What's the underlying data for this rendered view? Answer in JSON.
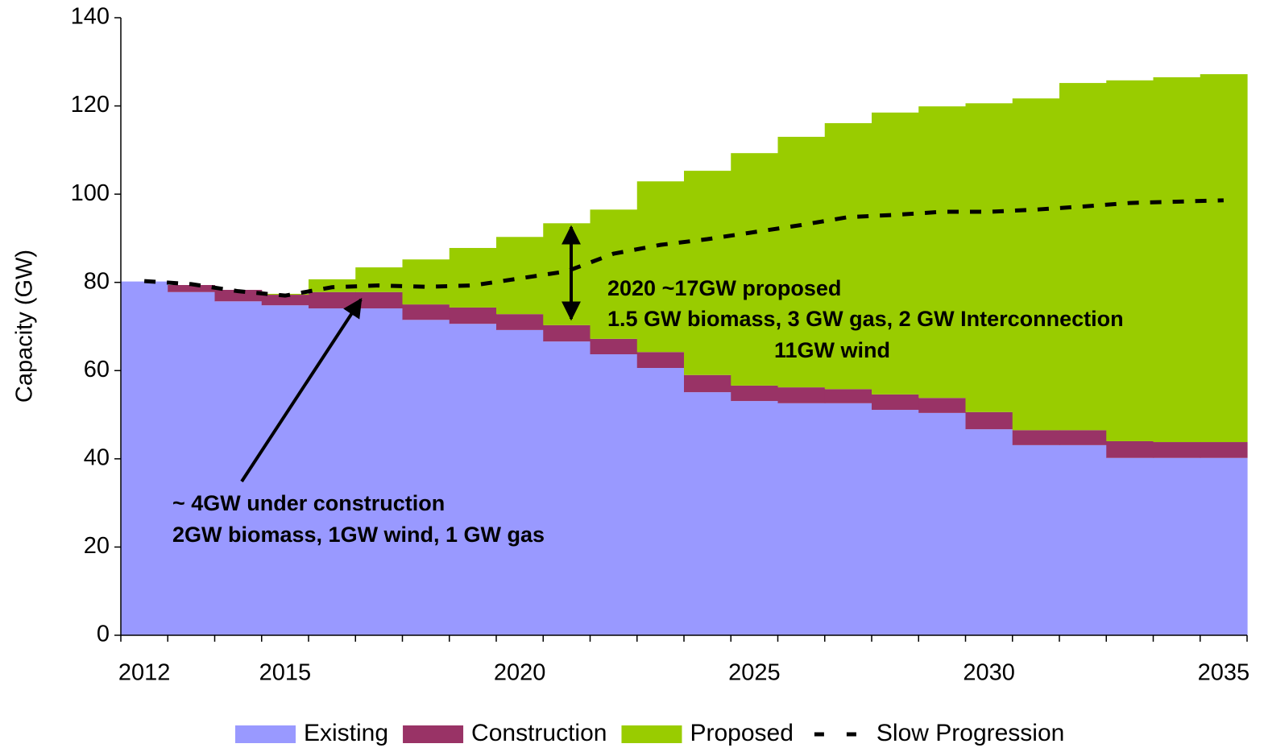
{
  "chart_data": {
    "type": "stepped-area",
    "y_label": "Capacity (GW)",
    "categories": [
      "2012",
      null,
      null,
      "2015",
      null,
      null,
      null,
      null,
      "2020",
      null,
      null,
      null,
      null,
      "2025",
      null,
      null,
      null,
      null,
      "2030",
      null,
      null,
      null,
      null,
      "2035"
    ],
    "series": [
      {
        "name": "Existing",
        "color": "#9999ff",
        "values": [
          80.2,
          77.8,
          75.7,
          74.8,
          74.1,
          74.1,
          71.5,
          70.6,
          69.2,
          66.6,
          63.7,
          60.6,
          55.1,
          53.1,
          52.6,
          52.6,
          51.1,
          50.4,
          46.7,
          43.1,
          43.1,
          40.2,
          40.2,
          40.2
        ]
      },
      {
        "name": "Construction",
        "color": "#993366",
        "values": [
          0,
          1.6,
          2.6,
          2.4,
          3.7,
          3.7,
          3.5,
          3.7,
          3.6,
          3.7,
          3.5,
          3.6,
          3.9,
          3.5,
          3.6,
          3.2,
          3.5,
          3.4,
          3.9,
          3.4,
          3.4,
          3.8,
          3.6,
          3.6
        ]
      },
      {
        "name": "Proposed",
        "color": "#99cc00",
        "values": [
          0,
          0,
          0,
          0.2,
          2.9,
          5.6,
          10.2,
          13.5,
          17.5,
          23.1,
          29.3,
          38.7,
          46.3,
          52.7,
          56.8,
          60.3,
          63.9,
          66.1,
          70.0,
          75.2,
          78.7,
          81.8,
          82.7,
          83.4
        ]
      },
      {
        "name": "Slow Progression",
        "type": "line",
        "color": "#000000",
        "values": [
          80.3,
          79.6,
          78.0,
          77.0,
          78.9,
          79.3,
          79.0,
          79.3,
          80.9,
          82.5,
          86.5,
          88.5,
          89.8,
          91.4,
          93.0,
          94.8,
          95.3,
          96.0,
          96.0,
          96.5,
          97.2,
          98.0,
          98.3,
          98.6
        ]
      }
    ],
    "ylim": [
      0,
      140
    ],
    "yticks": [
      0,
      20,
      40,
      60,
      80,
      100,
      120,
      140
    ],
    "annotations": [
      "2020 ~17GW proposed",
      "1.5 GW biomass, 3 GW gas, 2 GW Interconnection",
      "11GW wind",
      "~ 4GW under construction",
      "2GW biomass, 1GW wind, 1 GW gas"
    ],
    "legend": "bottom"
  }
}
